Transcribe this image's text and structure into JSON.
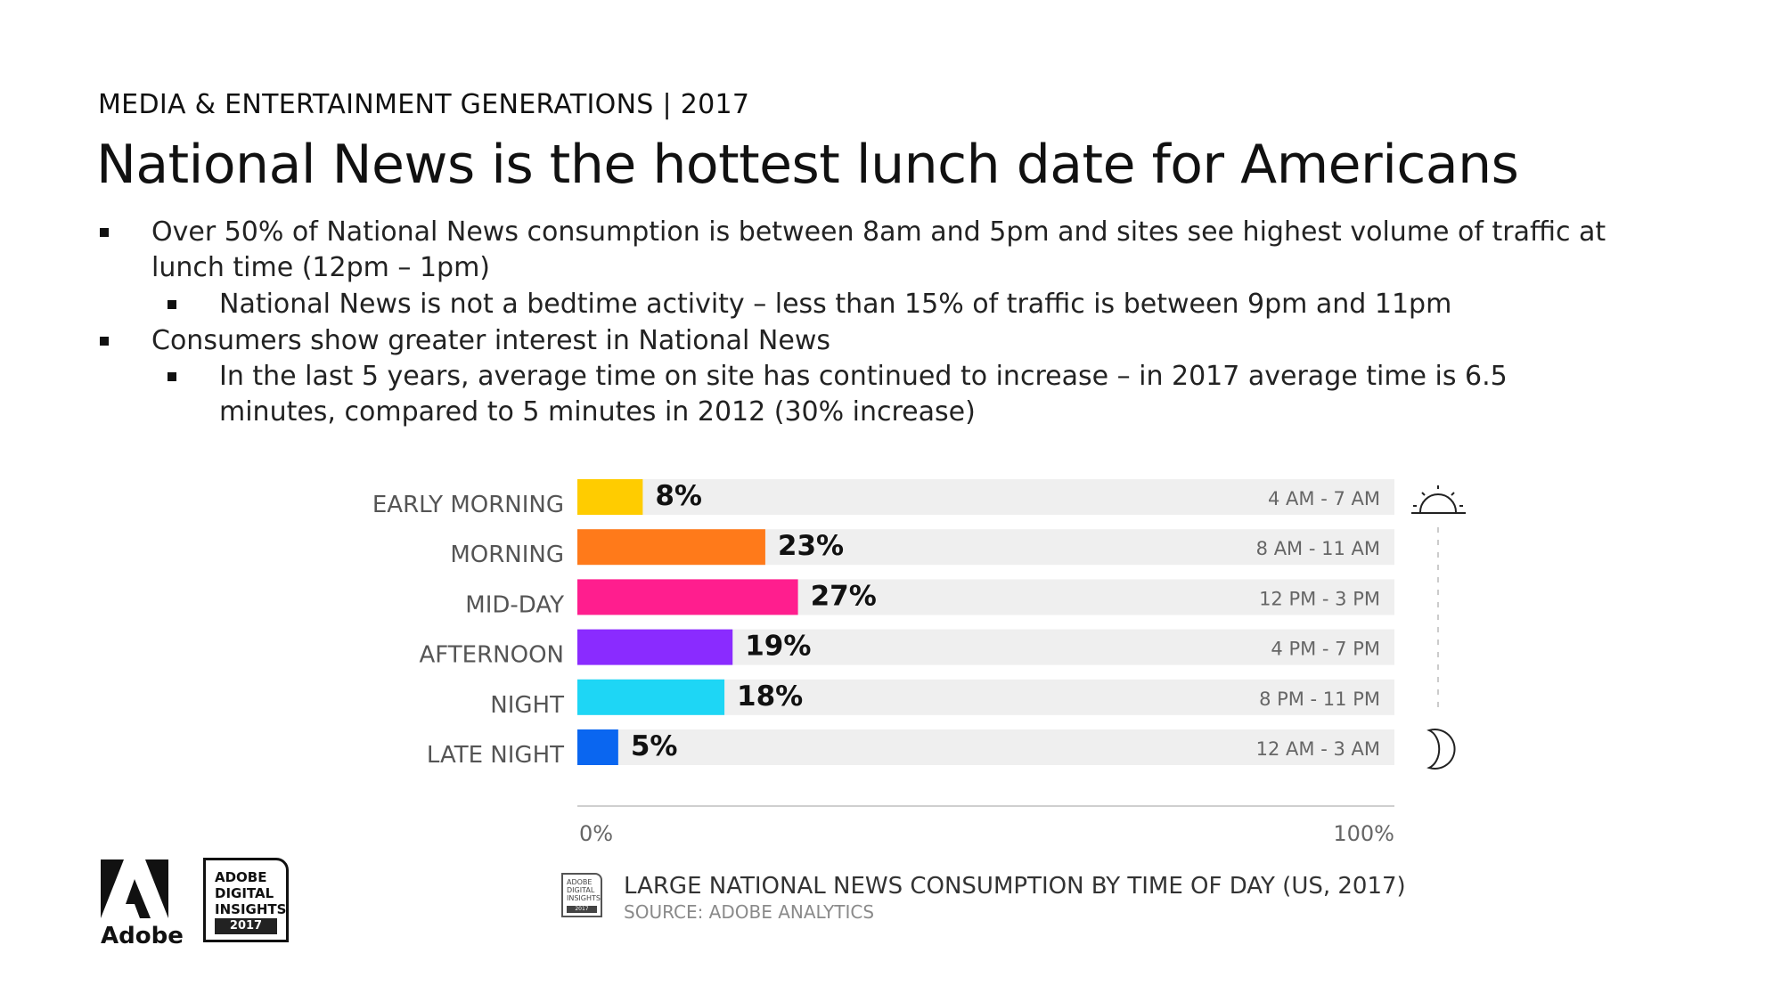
{
  "eyebrow": "MEDIA & ENTERTAINMENT GENERATIONS | 2017",
  "headline": "National News is the hottest lunch date for Americans",
  "bullets": {
    "b1": "Over 50% of National News consumption is between 8am and 5pm and sites see highest volume of traffic at lunch time (12pm – 1pm)",
    "b1a": "National News is not a bedtime activity – less than 15% of traffic is between 9pm and 11pm",
    "b2": "Consumers show greater interest in National News",
    "b2a": "In the last 5 years, average time on site has continued to increase – in 2017 average time is 6.5 minutes, compared to 5 minutes in 2012 (30% increase)"
  },
  "chart_data": {
    "type": "bar",
    "orientation": "horizontal",
    "title": "LARGE NATIONAL NEWS CONSUMPTION BY TIME OF DAY (US, 2017)",
    "source": "SOURCE: ADOBE ANALYTICS",
    "categories": [
      "EARLY MORNING",
      "MORNING",
      "MID-DAY",
      "AFTERNOON",
      "NIGHT",
      "LATE NIGHT"
    ],
    "values": [
      8,
      23,
      27,
      19,
      18,
      5
    ],
    "value_labels": [
      "8%",
      "23%",
      "27%",
      "19%",
      "18%",
      "5%"
    ],
    "time_ranges": [
      "4 AM - 7 AM",
      "8 AM - 11 AM",
      "12 PM - 3 PM",
      "4 PM - 7 PM",
      "8 PM - 11 PM",
      "12 AM - 3 AM"
    ],
    "colors": [
      "#FFCC00",
      "#FF7A1A",
      "#FF1E8E",
      "#8A2BFF",
      "#1ED6F5",
      "#0A66F0"
    ],
    "track_color": "#EFEFEF",
    "xlim": [
      0,
      100
    ],
    "xtick_labels": [
      "0%",
      "100%"
    ],
    "grid": false
  },
  "logos": {
    "adobe_wordmark": "Adobe",
    "badge_lines": [
      "ADOBE",
      "DIGITAL",
      "INSIGHTS"
    ],
    "badge_year": "2017",
    "small_badge_lines": [
      "ADOBE",
      "DIGITAL",
      "INSIGHTS"
    ],
    "small_badge_year": "2017"
  },
  "icons": {
    "top": "sunrise-icon",
    "bottom": "crescent-moon-icon"
  }
}
